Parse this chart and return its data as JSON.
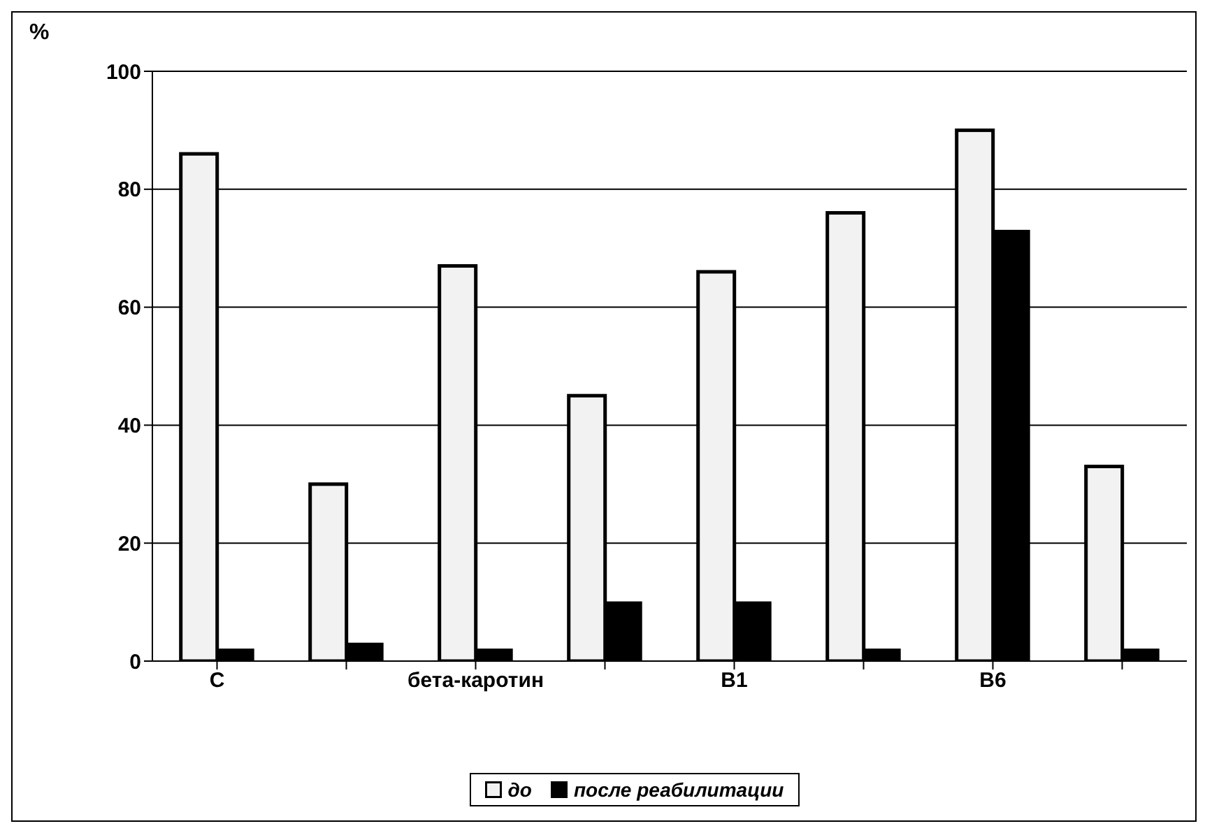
{
  "chart_data": {
    "type": "bar",
    "ylabel": "%",
    "categories": [
      "C",
      null,
      "бета-каротин",
      null,
      "B1",
      null,
      "B6",
      null
    ],
    "series": [
      {
        "name": "до",
        "color": "#f2f2f2",
        "values": [
          86,
          30,
          67,
          45,
          66,
          76,
          90,
          33
        ]
      },
      {
        "name": "после реабилитации",
        "color": "#000000",
        "values": [
          2,
          3,
          2,
          10,
          10,
          2,
          73,
          2
        ]
      }
    ],
    "ylim": [
      0,
      100
    ],
    "yticks": [
      0,
      20,
      40,
      60,
      80,
      100
    ],
    "grid": "y",
    "legend": "bottom"
  }
}
